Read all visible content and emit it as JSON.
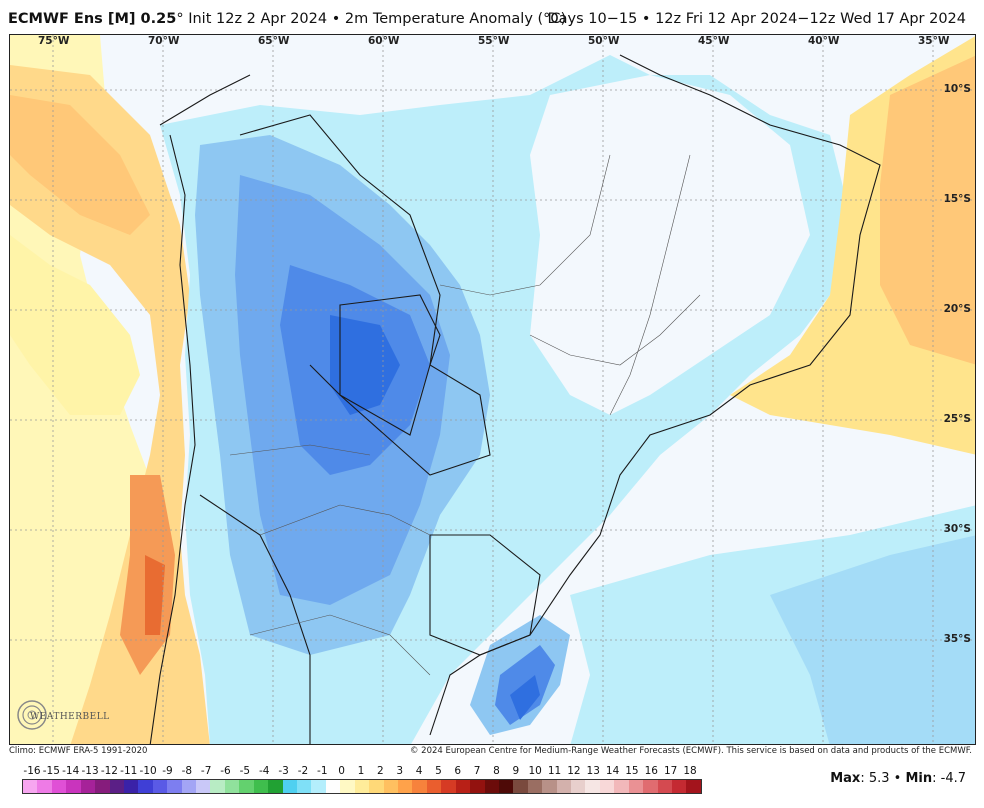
{
  "header": {
    "model": "ECMWF Ens [M] 0.25",
    "degree_mark": "°",
    "init": "Init 12z 2 Apr 2024",
    "bullet": "•",
    "field": "2m Temperature Anomaly (°C)",
    "valid": "Days 10−15 • 12z Fri 12 Apr 2024−12z Wed 17 Apr 2024"
  },
  "map": {
    "lon_labels": [
      "75°W",
      "70°W",
      "65°W",
      "60°W",
      "55°W",
      "50°W",
      "45°W",
      "40°W",
      "35°W"
    ],
    "lat_labels": [
      "10°S",
      "15°S",
      "20°S",
      "25°S",
      "30°S",
      "35°S"
    ],
    "colors": {
      "ocean_neutral": "#f3f8fd",
      "cold_1": "#bdeefa",
      "cold_2": "#a4dcf7",
      "cold_3": "#8ec7f2",
      "cold_4": "#6fa9ee",
      "cold_5": "#4f8ae8",
      "cold_6": "#2f6fe0",
      "warm_1": "#fff7b8",
      "warm_2": "#ffe48c",
      "warm_3": "#ffc878",
      "warm_4": "#f59a56",
      "warm_5": "#e86c32",
      "border": "#1a1a1a",
      "grid": "#999999"
    }
  },
  "footer": {
    "climo": "Climo: ECMWF ERA-5 1991-2020",
    "copyright": "© 2024 European Centre for Medium-Range Weather Forecasts (ECMWF). This service is based on data and products of the ECMWF."
  },
  "legend": {
    "labels": [
      "-16",
      "-15",
      "-14",
      "-13",
      "-12",
      "-11",
      "-10",
      "-9",
      "-8",
      "-7",
      "-6",
      "-5",
      "-4",
      "-3",
      "-2",
      "-1",
      "0",
      "1",
      "2",
      "3",
      "4",
      "5",
      "6",
      "7",
      "8",
      "9",
      "10",
      "11",
      "12",
      "13",
      "14",
      "15",
      "16",
      "17",
      "18"
    ],
    "colors": [
      "#f7a6f0",
      "#ee7be6",
      "#e050d6",
      "#c934bd",
      "#a62299",
      "#861c7c",
      "#5b1f86",
      "#3a22a8",
      "#3f3fd6",
      "#5a5ae6",
      "#7d7ef0",
      "#a3a5f5",
      "#c9c8f8",
      "#b8ecc4",
      "#90e19c",
      "#63d16e",
      "#3fbe4d",
      "#21a133",
      "#4fd0f0",
      "#7fe0f7",
      "#b4eefc",
      "#fefefe",
      "#fff9c4",
      "#ffec9a",
      "#ffd978",
      "#ffc060",
      "#ffa24a",
      "#f7823c",
      "#ea5e2e",
      "#d63b24",
      "#b82017",
      "#93120f",
      "#6c0c0a",
      "#4e0a07",
      "#7a4a3e",
      "#9a6e62",
      "#b89188",
      "#d3b1ac",
      "#e8cfcc",
      "#f6e6e4",
      "#f8d8d8",
      "#f2b8ba",
      "#ea9194",
      "#e06c70",
      "#d44a50",
      "#c42a32",
      "#a3141c"
    ]
  },
  "maxmin": {
    "max_label": "Max",
    "max_value": ": 5.3",
    "sep": "•",
    "min_label": "Min",
    "min_value": ": -4.7"
  },
  "logo": {
    "text": "WEATHERBELL"
  }
}
